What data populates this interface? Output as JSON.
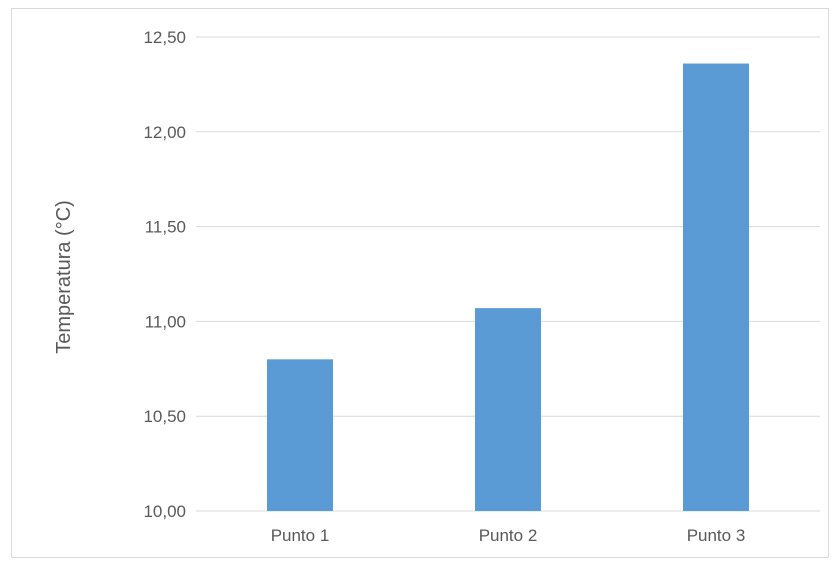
{
  "chart_data": {
    "type": "bar",
    "title": "",
    "xlabel": "",
    "ylabel": "Temperatura (°C)",
    "categories": [
      "Punto 1",
      "Punto 2",
      "Punto 3"
    ],
    "values": [
      10.8,
      11.07,
      12.36
    ],
    "ylim": [
      10.0,
      12.5
    ],
    "yticks": [
      10.0,
      10.5,
      11.0,
      11.5,
      12.0,
      12.5
    ],
    "ytick_labels": [
      "10,00",
      "10,50",
      "11,00",
      "11,50",
      "12,00",
      "12,50"
    ],
    "grid": true,
    "legend": "none",
    "bar_color": "#5B9BD5",
    "grid_color": "#d9d9d9"
  }
}
